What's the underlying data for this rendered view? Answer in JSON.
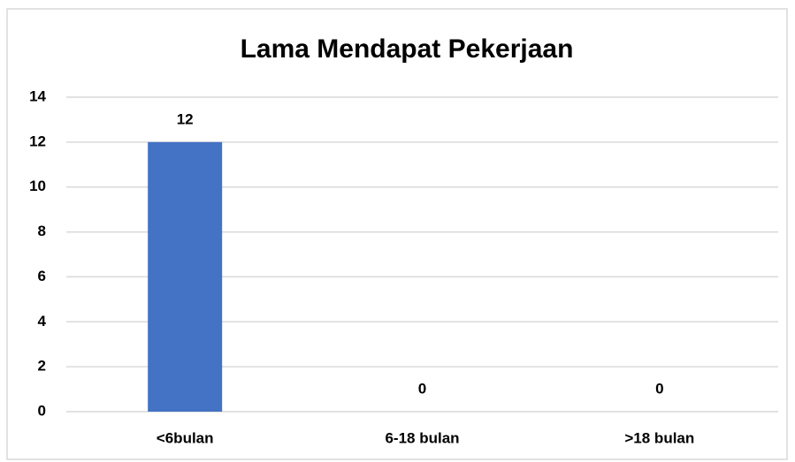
{
  "chart_data": {
    "type": "bar",
    "title": "Lama Mendapat Pekerjaan",
    "categories": [
      "<6bulan",
      "6-18 bulan",
      ">18 bulan"
    ],
    "values": [
      12,
      0,
      0
    ],
    "color": "#4472c4",
    "ylim": [
      0,
      14
    ],
    "yticks": [
      0,
      2,
      4,
      6,
      8,
      10,
      12,
      14
    ],
    "grid": true
  }
}
